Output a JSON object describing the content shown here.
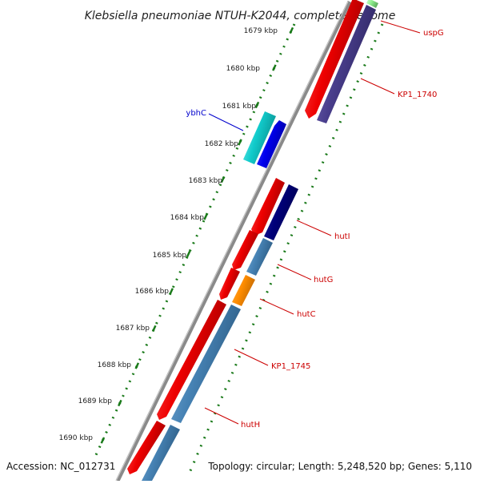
{
  "title": "Klebsiella pneumoniae NTUH-K2044, complete genome",
  "footer": {
    "accession": "Accession: NC_012731",
    "summary": "Topology: circular; Length: 5,248,520 bp; Genes: 5,110"
  },
  "ticks": [
    "1679 kbp",
    "1680 kbp",
    "1681 kbp",
    "1682 kbp",
    "1683 kbp",
    "1684 kbp",
    "1685 kbp",
    "1686 kbp",
    "1687 kbp",
    "1688 kbp",
    "1689 kbp",
    "1690 kbp"
  ],
  "gene_labels": [
    {
      "name": "uspG",
      "color": "#cc0000"
    },
    {
      "name": "KP1_1740",
      "color": "#cc0000"
    },
    {
      "name": "ybhC",
      "color": "#0000cc"
    },
    {
      "name": "hutI",
      "color": "#cc0000"
    },
    {
      "name": "hutG",
      "color": "#cc0000"
    },
    {
      "name": "hutC",
      "color": "#cc0000"
    },
    {
      "name": "KP1_1745",
      "color": "#cc0000"
    },
    {
      "name": "hutH",
      "color": "#cc0000"
    }
  ],
  "colors": {
    "backbone": "#8a8a8a",
    "cds": "#ee0000",
    "steel": "#4682b4",
    "navy": "#00007a",
    "slate": "#483d8b",
    "orange": "#ff8c00",
    "cyan": "#11cccc",
    "blue": "#0000ee",
    "green": "#90ee90",
    "gc": "#1a7a1a"
  }
}
